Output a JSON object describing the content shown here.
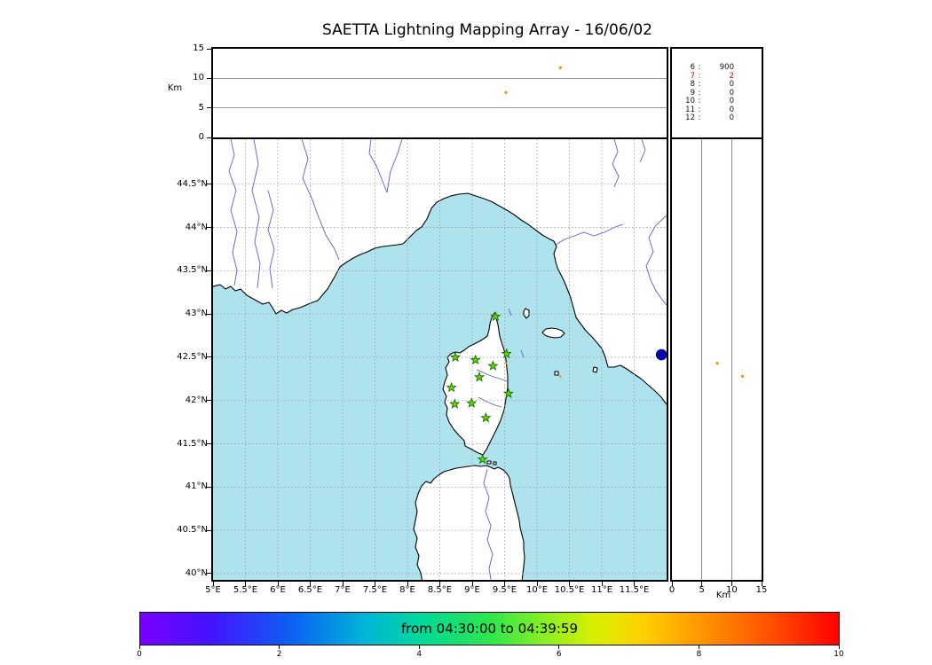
{
  "colors": {
    "sea": "#aee3ee",
    "land": "#ffffff",
    "coast": "#000000",
    "river": "#5b5bd6",
    "grid": "#999999",
    "panel_grid": "#555555",
    "station_fill": "#55dd00",
    "station_edge": "#1a5a00",
    "source_dot": "#ff8c00",
    "large_point": "#0000a8",
    "highlight": "#dd0000"
  },
  "chart_data": {
    "type": "scatter",
    "title": "SAETTA Lightning Mapping Array - 16/06/02",
    "panels": {
      "alt_lon": {
        "ylabel": "Km",
        "ylim": [
          0,
          15
        ],
        "yticks": [
          0,
          5,
          10,
          15
        ],
        "grid_alts": [
          5,
          10
        ]
      },
      "counts": {
        "rows": [
          {
            "level": "6",
            "count": "900"
          },
          {
            "level": "7",
            "count": "2"
          },
          {
            "level": "8",
            "count": "0"
          },
          {
            "level": "9",
            "count": "0"
          },
          {
            "level": "10",
            "count": "0"
          },
          {
            "level": "11",
            "count": "0"
          },
          {
            "level": "12",
            "count": "0"
          }
        ],
        "highlight_level": "7"
      },
      "map": {
        "xlim": [
          5,
          12
        ],
        "ylim": [
          39.9,
          45.0
        ],
        "lon_ticks": [
          {
            "v": 5,
            "label": "5°E"
          },
          {
            "v": 5.5,
            "label": "5.5°E"
          },
          {
            "v": 6,
            "label": "6°E"
          },
          {
            "v": 6.5,
            "label": "6.5°E"
          },
          {
            "v": 7,
            "label": "7°E"
          },
          {
            "v": 7.5,
            "label": "7.5°E"
          },
          {
            "v": 8,
            "label": "8°E"
          },
          {
            "v": 8.5,
            "label": "8.5°E"
          },
          {
            "v": 9,
            "label": "9°E"
          },
          {
            "v": 9.5,
            "label": "9.5°E"
          },
          {
            "v": 10,
            "label": "10°E"
          },
          {
            "v": 10.5,
            "label": "10.5°E"
          },
          {
            "v": 11,
            "label": "11°E"
          },
          {
            "v": 11.5,
            "label": "11.5°E"
          }
        ],
        "lat_ticks": [
          {
            "v": 44.5,
            "label": "44.5°N"
          },
          {
            "v": 44,
            "label": "44°N"
          },
          {
            "v": 43.5,
            "label": "43.5°N"
          },
          {
            "v": 43,
            "label": "43°N"
          },
          {
            "v": 42.5,
            "label": "42.5°N"
          },
          {
            "v": 42,
            "label": "42°N"
          },
          {
            "v": 41.5,
            "label": "41.5°N"
          },
          {
            "v": 41,
            "label": "41°N"
          },
          {
            "v": 40.5,
            "label": "40.5°N"
          },
          {
            "v": 40,
            "label": "40°N"
          }
        ],
        "stations": [
          [
            9.36,
            42.97
          ],
          [
            8.74,
            42.5
          ],
          [
            9.05,
            42.47
          ],
          [
            9.53,
            42.54
          ],
          [
            9.32,
            42.4
          ],
          [
            9.11,
            42.27
          ],
          [
            8.68,
            42.15
          ],
          [
            9.56,
            42.08
          ],
          [
            8.73,
            41.96
          ],
          [
            8.99,
            41.97
          ],
          [
            9.21,
            41.8
          ],
          [
            9.16,
            41.32
          ]
        ],
        "large_point": {
          "lon": 11.92,
          "lat": 42.53
        }
      },
      "alt_lat": {
        "xlabel": "Km",
        "xlim": [
          0,
          15
        ],
        "xticks": [
          0,
          5,
          10,
          15
        ],
        "grid_alts": [
          5,
          10
        ]
      },
      "colorbar": {
        "label": "from 04:30:00 to 04:39:59",
        "min": 0,
        "max": 10,
        "ticks": [
          0,
          2,
          4,
          6,
          8,
          10
        ]
      }
    },
    "sources": [
      {
        "lon": 9.52,
        "lat": 42.43,
        "alt_km": 7.6
      },
      {
        "lon": 10.36,
        "lat": 42.28,
        "alt_km": 11.8
      }
    ]
  }
}
